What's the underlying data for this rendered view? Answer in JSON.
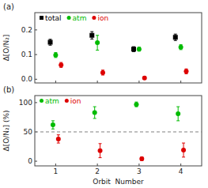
{
  "chart_data": [
    {
      "type": "scatter",
      "title": "(a)",
      "y_label": "Δ[O/N₂]",
      "x": [
        1,
        2,
        3,
        4
      ],
      "xlim": [
        0.5,
        4.5
      ],
      "xticks": [
        1,
        2,
        3,
        4
      ],
      "ylim": [
        -0.015,
        0.27
      ],
      "yticks": [
        {
          "value": 0.0,
          "label": "0.0"
        },
        0.1,
        0.2
      ],
      "tick_labels": "y",
      "grid": false,
      "legend": "upper left",
      "series": [
        {
          "name": "total",
          "color": "#000000",
          "marker": "square",
          "values": [
            0.15,
            0.178,
            0.122,
            0.17
          ],
          "errors": [
            0.012,
            0.015,
            0.01,
            0.013
          ]
        },
        {
          "name": "atm",
          "color": "#00bb00",
          "marker": "circle",
          "values": [
            0.098,
            0.148,
            0.122,
            0.13
          ],
          "errors": [
            0.01,
            0.03,
            0.008,
            0.01
          ]
        },
        {
          "name": "ion",
          "color": "#dd0000",
          "marker": "circle",
          "values": [
            0.058,
            0.027,
            0.005,
            0.032
          ],
          "errors": [
            0.01,
            0.01,
            0.005,
            0.01
          ]
        }
      ]
    },
    {
      "type": "scatter",
      "title": "(b)",
      "y_label": "Δ[O/N₂] (%)",
      "x_label": "Orbit  Number",
      "x": [
        1,
        2,
        3,
        4
      ],
      "xlim": [
        0.5,
        4.5
      ],
      "xticks": [
        1,
        2,
        3,
        4
      ],
      "ylim": [
        -8,
        112
      ],
      "yticks": [
        0,
        50,
        100
      ],
      "grid": false,
      "legend": "upper left",
      "reference_lines": [
        {
          "value": 50,
          "line_style": "dashed",
          "color": "#808080"
        }
      ],
      "series": [
        {
          "name": "atm",
          "color": "#00bb00",
          "marker": "circle",
          "values": [
            62,
            83,
            97,
            81
          ],
          "errors": [
            7,
            10,
            4,
            12
          ]
        },
        {
          "name": "ion",
          "color": "#dd0000",
          "marker": "circle",
          "values": [
            38,
            18,
            4,
            19
          ],
          "errors": [
            7,
            12,
            3,
            12
          ]
        }
      ]
    }
  ]
}
